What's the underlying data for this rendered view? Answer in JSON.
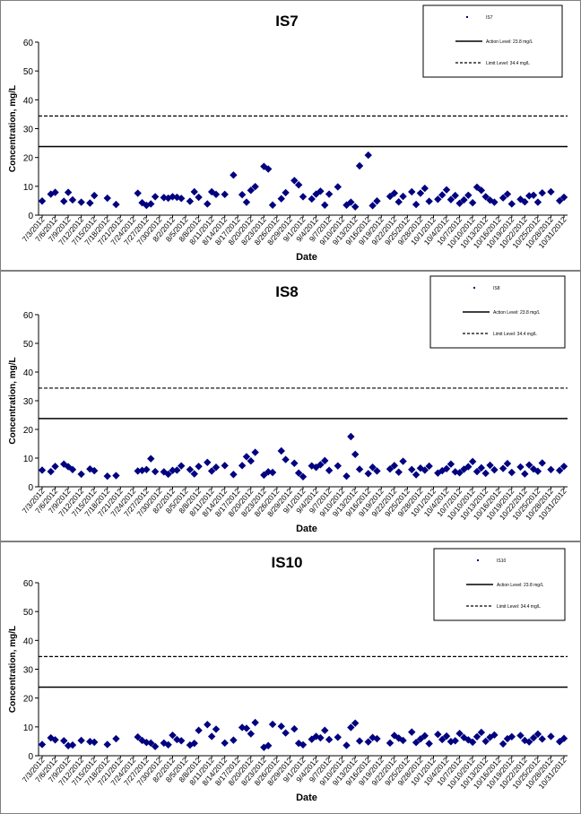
{
  "chart_data": [
    {
      "type": "scatter",
      "title": "IS7",
      "xlabel": "Date",
      "ylabel": "Concentration, mg/L",
      "ylim": [
        0,
        60
      ],
      "yticks": [
        "0",
        "10",
        "20",
        "30",
        "40",
        "50",
        "60"
      ],
      "x_ticks": [
        "7/3/2012",
        "7/6/2012",
        "7/9/2012",
        "7/12/2012",
        "7/15/2012",
        "7/18/2012",
        "7/21/2012",
        "7/24/2012",
        "7/27/2012",
        "7/30/2012",
        "8/2/2012",
        "8/5/2012",
        "8/8/2012",
        "8/11/2012",
        "8/14/2012",
        "8/17/2012",
        "8/20/2012",
        "8/23/2012",
        "8/26/2012",
        "8/29/2012",
        "9/1/2012",
        "9/4/2012",
        "9/7/2012",
        "9/10/2012",
        "9/13/2012",
        "9/16/2012",
        "9/19/2012",
        "9/22/2012",
        "9/25/2012",
        "9/28/2012",
        "10/1/2012",
        "10/4/2012",
        "10/7/2012",
        "10/10/2012",
        "10/13/2012",
        "10/16/2012",
        "10/19/2012",
        "10/22/2012",
        "10/25/2012",
        "10/28/2012",
        "10/31/2012"
      ],
      "legend": {
        "placement": "top-right",
        "entries": [
          "IS7",
          "Action Level: 23.8 mg/L",
          "Limit Level: 34.4 mg/L"
        ]
      },
      "action_level": 23.8,
      "limit_level": 34.4,
      "series": [
        {
          "name": "IS7",
          "x": [
            0,
            2,
            3,
            5,
            6,
            7,
            9,
            11,
            12,
            15,
            17,
            22,
            23,
            24,
            25,
            26,
            28,
            29,
            30,
            31,
            32,
            34,
            35,
            36,
            38,
            39,
            40,
            42,
            44,
            46,
            47,
            48,
            49,
            51,
            52,
            53,
            55,
            56,
            58,
            59,
            60,
            62,
            63,
            64,
            65,
            66,
            68,
            70,
            71,
            72,
            73,
            75,
            76,
            77,
            80,
            81,
            82,
            83,
            85,
            86,
            87,
            88,
            89,
            91,
            92,
            93,
            94,
            95,
            96,
            97,
            98,
            99,
            100,
            101,
            102,
            103,
            104,
            106,
            107,
            108,
            110,
            111,
            112,
            113,
            114,
            115,
            117,
            119,
            120
          ],
          "y": [
            4.9,
            7.3,
            7.9,
            4.8,
            7.9,
            5.3,
            4.5,
            4.2,
            6.8,
            5.9,
            3.7,
            7.6,
            4.3,
            3.4,
            3.9,
            6.4,
            6.1,
            5.9,
            6.4,
            6.2,
            5.8,
            4.8,
            8.1,
            6.2,
            3.9,
            8.1,
            7.2,
            7.2,
            13.9,
            7.1,
            4.5,
            8.6,
            9.9,
            16.9,
            16.0,
            3.5,
            5.7,
            7.8,
            12.0,
            10.5,
            6.4,
            5.6,
            7.3,
            8.3,
            3.5,
            7.3,
            9.8,
            3.5,
            4.5,
            2.9,
            17.1,
            20.8,
            3.3,
            4.9,
            6.5,
            7.6,
            4.6,
            6.5,
            8.1,
            3.7,
            7.6,
            9.3,
            4.8,
            5.5,
            7.0,
            8.8,
            5.4,
            6.8,
            4.1,
            5.3,
            6.9,
            4.3,
            9.7,
            8.6,
            6.4,
            5.2,
            4.5,
            6.0,
            7.3,
            3.9,
            5.5,
            4.6,
            6.7,
            6.9,
            4.5,
            7.7,
            8.1,
            5.0,
            6.2
          ]
        }
      ]
    },
    {
      "type": "scatter",
      "title": "IS8",
      "xlabel": "Date",
      "ylabel": "Concentration, mg/L",
      "ylim": [
        0,
        60
      ],
      "yticks": [
        "0",
        "10",
        "20",
        "30",
        "40",
        "50",
        "60"
      ],
      "x_ticks": [
        "7/3/2012",
        "7/6/2012",
        "7/9/2012",
        "7/12/2012",
        "7/15/2012",
        "7/18/2012",
        "7/21/2012",
        "7/24/2012",
        "7/27/2012",
        "7/30/2012",
        "8/2/2012",
        "8/5/2012",
        "8/8/2012",
        "8/11/2012",
        "8/14/2012",
        "8/17/2012",
        "8/20/2012",
        "8/23/2012",
        "8/26/2012",
        "8/29/2012",
        "9/1/2012",
        "9/4/2012",
        "9/7/2012",
        "9/10/2012",
        "9/13/2012",
        "9/16/2012",
        "9/19/2012",
        "9/22/2012",
        "9/25/2012",
        "9/28/2012",
        "10/1/2012",
        "10/4/2012",
        "10/7/2012",
        "10/10/2012",
        "10/13/2012",
        "10/16/2012",
        "10/19/2012",
        "10/22/2012",
        "10/25/2012",
        "10/28/2012",
        "10/31/2012"
      ],
      "legend": {
        "placement": "top-right",
        "entries": [
          "IS8",
          "Action Level: 23.8 mg/L",
          "Limit Level: 34.4 mg/L"
        ]
      },
      "action_level": 23.8,
      "limit_level": 34.4,
      "series": [
        {
          "name": "IS8",
          "x": [
            0,
            2,
            3,
            5,
            6,
            7,
            9,
            11,
            12,
            15,
            17,
            22,
            23,
            24,
            25,
            26,
            28,
            29,
            30,
            31,
            32,
            34,
            35,
            36,
            38,
            39,
            40,
            42,
            44,
            46,
            47,
            48,
            49,
            51,
            52,
            53,
            55,
            56,
            58,
            59,
            60,
            62,
            63,
            64,
            65,
            66,
            68,
            70,
            71,
            72,
            73,
            75,
            76,
            77,
            80,
            81,
            82,
            83,
            85,
            86,
            87,
            88,
            89,
            91,
            92,
            93,
            94,
            95,
            96,
            97,
            98,
            99,
            100,
            101,
            102,
            103,
            104,
            106,
            107,
            108,
            110,
            111,
            112,
            113,
            114,
            115,
            117,
            119,
            120
          ],
          "y": [
            5.8,
            5.3,
            7.1,
            7.9,
            7.0,
            6.0,
            4.4,
            6.2,
            5.6,
            3.7,
            3.9,
            5.5,
            5.7,
            6.0,
            9.8,
            5.3,
            5.2,
            4.4,
            5.7,
            5.8,
            7.3,
            6.0,
            4.5,
            7.1,
            8.5,
            5.5,
            6.8,
            7.4,
            4.3,
            7.4,
            10.5,
            9.0,
            12.0,
            4.1,
            5.2,
            5.0,
            12.5,
            9.5,
            8.2,
            4.8,
            3.5,
            7.3,
            6.8,
            7.7,
            9.1,
            5.7,
            7.3,
            3.7,
            17.5,
            11.3,
            6.1,
            4.6,
            6.8,
            5.5,
            6.2,
            7.4,
            5.1,
            8.9,
            6.0,
            4.2,
            6.5,
            5.8,
            7.2,
            4.8,
            5.6,
            6.3,
            7.9,
            5.2,
            4.9,
            6.1,
            7.0,
            8.8,
            5.3,
            6.6,
            4.7,
            7.5,
            5.9,
            6.4,
            8.1,
            5.0,
            6.9,
            4.5,
            7.6,
            6.2,
            5.4,
            8.3,
            6.0,
            5.7,
            7.1
          ]
        }
      ]
    },
    {
      "type": "scatter",
      "title": "IS10",
      "xlabel": "Date",
      "ylabel": "Concentration, mg/L",
      "ylim": [
        0,
        60
      ],
      "yticks": [
        "0",
        "10",
        "20",
        "30",
        "40",
        "50",
        "60"
      ],
      "x_ticks": [
        "7/3/2012",
        "7/6/2012",
        "7/9/2012",
        "7/12/2012",
        "7/15/2012",
        "7/18/2012",
        "7/21/2012",
        "7/24/2012",
        "7/27/2012",
        "7/30/2012",
        "8/2/2012",
        "8/5/2012",
        "8/8/2012",
        "8/11/2012",
        "8/14/2012",
        "8/17/2012",
        "8/20/2012",
        "8/23/2012",
        "8/26/2012",
        "8/29/2012",
        "9/1/2012",
        "9/4/2012",
        "9/7/2012",
        "9/10/2012",
        "9/13/2012",
        "9/16/2012",
        "9/19/2012",
        "9/22/2012",
        "9/25/2012",
        "9/28/2012",
        "10/1/2012",
        "10/4/2012",
        "10/7/2012",
        "10/10/2012",
        "10/13/2012",
        "10/16/2012",
        "10/19/2012",
        "10/22/2012",
        "10/25/2012",
        "10/28/2012",
        "10/31/2012"
      ],
      "legend": {
        "placement": "top-right",
        "entries": [
          "IS10",
          "Action Level: 23.8 mg/L",
          "Limit Level: 34.4 mg/L"
        ]
      },
      "action_level": 23.8,
      "limit_level": 34.4,
      "series": [
        {
          "name": "IS10",
          "x": [
            0,
            2,
            3,
            5,
            6,
            7,
            9,
            11,
            12,
            15,
            17,
            22,
            23,
            24,
            25,
            26,
            28,
            29,
            30,
            31,
            32,
            34,
            35,
            36,
            38,
            39,
            40,
            42,
            44,
            46,
            47,
            48,
            49,
            51,
            52,
            53,
            55,
            56,
            58,
            59,
            60,
            62,
            63,
            64,
            65,
            66,
            68,
            70,
            71,
            72,
            73,
            75,
            76,
            77,
            80,
            81,
            82,
            83,
            85,
            86,
            87,
            88,
            89,
            91,
            92,
            93,
            94,
            95,
            96,
            97,
            98,
            99,
            100,
            101,
            102,
            103,
            104,
            106,
            107,
            108,
            110,
            111,
            112,
            113,
            114,
            115,
            117,
            119,
            120
          ],
          "y": [
            3.9,
            6.2,
            5.5,
            5.2,
            3.5,
            3.7,
            5.3,
            4.9,
            4.7,
            3.9,
            5.9,
            6.5,
            5.3,
            4.6,
            4.4,
            3.2,
            4.4,
            3.8,
            7.1,
            5.6,
            5.2,
            3.7,
            4.3,
            8.8,
            10.8,
            6.7,
            9.2,
            4.4,
            5.4,
            9.8,
            9.5,
            7.6,
            11.5,
            2.9,
            3.5,
            10.9,
            10.2,
            7.9,
            9.3,
            4.3,
            3.8,
            5.7,
            6.7,
            6.2,
            8.8,
            5.6,
            6.4,
            3.6,
            9.8,
            11.3,
            5.1,
            4.8,
            6.3,
            5.9,
            4.4,
            7.0,
            6.1,
            5.3,
            8.2,
            4.6,
            5.8,
            6.9,
            4.2,
            7.4,
            5.6,
            6.8,
            4.9,
            5.2,
            7.7,
            6.3,
            5.5,
            4.7,
            6.6,
            8.1,
            5.0,
            6.4,
            7.2,
            4.1,
            5.9,
            6.6,
            7.0,
            5.3,
            4.8,
            6.2,
            7.5,
            5.8,
            6.7,
            4.9,
            6.0
          ]
        }
      ]
    }
  ]
}
